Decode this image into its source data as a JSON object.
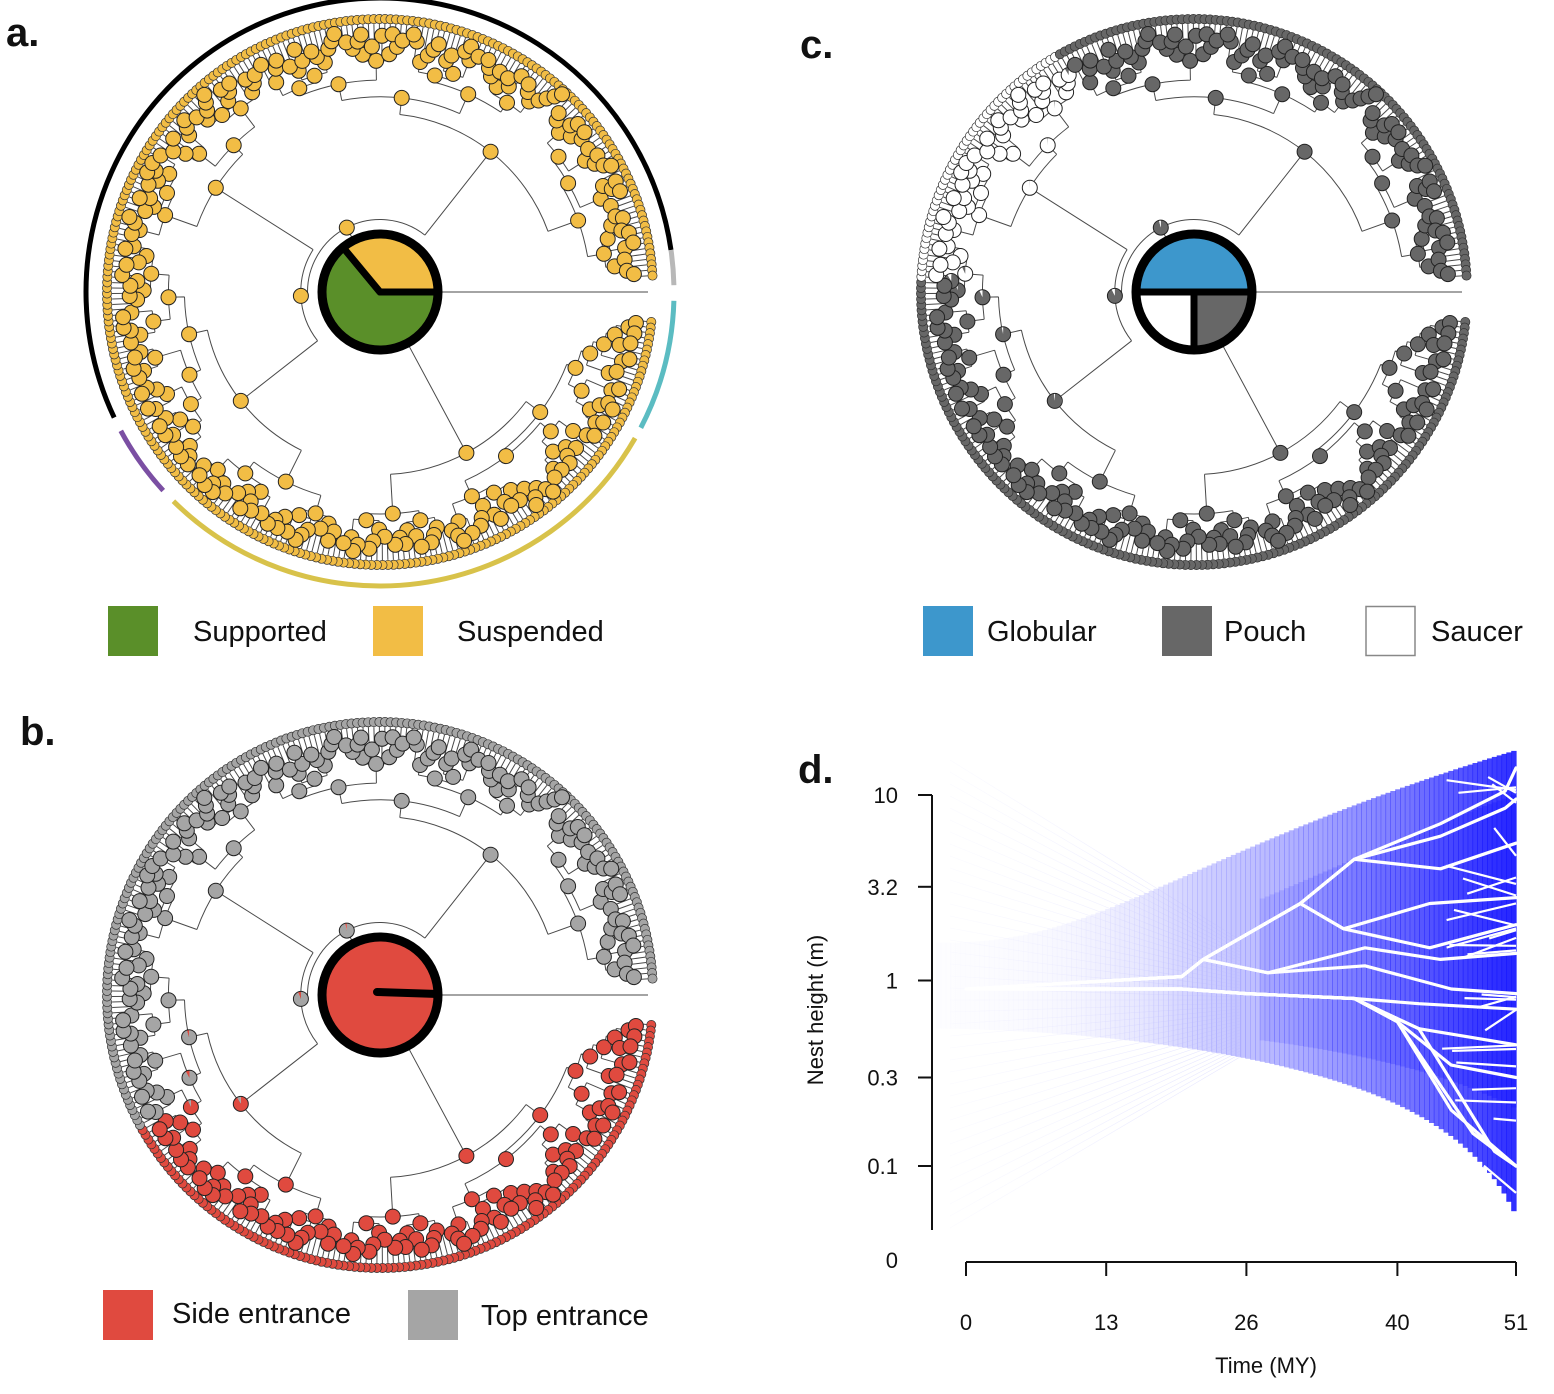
{
  "panels": {
    "a": {
      "label": "a."
    },
    "b": {
      "label": "b."
    },
    "c": {
      "label": "c."
    },
    "d": {
      "label": "d."
    }
  },
  "colors": {
    "supported": "#5a8f29",
    "suspended": "#f2bd45",
    "side_entrance": "#e04a3f",
    "top_entrance": "#a5a5a5",
    "globular": "#3d97cc",
    "pouch": "#676767",
    "saucer": "#ffffff",
    "density": "#1414ff",
    "lineage": "#ffffff",
    "arc_black": "#000000",
    "arc_gray": "#b8b8b8",
    "arc_teal": "#5bbcc2",
    "arc_gold": "#d8c24a",
    "arc_purple": "#7b4fa3"
  },
  "legends": {
    "a": [
      {
        "label": "Supported",
        "color": "#5a8f29"
      },
      {
        "label": "Suspended",
        "color": "#f2bd45"
      }
    ],
    "b": [
      {
        "label": "Side entrance",
        "color": "#e04a3f"
      },
      {
        "label": "Top entrance",
        "color": "#a5a5a5"
      }
    ],
    "c": [
      {
        "label": "Globular",
        "color": "#3d97cc"
      },
      {
        "label": "Pouch",
        "color": "#676767"
      },
      {
        "label": "Saucer",
        "color": "#ffffff"
      }
    ]
  },
  "chart_data": [
    {
      "panel": "a",
      "type": "pie",
      "description_of_marks": "circular phylogeny with ancestral-state pies; root pie shown",
      "root_state": [
        {
          "name": "Supported",
          "value": 0.64
        },
        {
          "name": "Suspended",
          "value": 0.36
        }
      ],
      "legend": [
        "Supported",
        "Suspended"
      ]
    },
    {
      "panel": "b",
      "type": "pie",
      "root_state": [
        {
          "name": "Side entrance",
          "value": 1.0
        },
        {
          "name": "Top entrance",
          "value": 0.0
        }
      ],
      "legend": [
        "Side entrance",
        "Top entrance"
      ]
    },
    {
      "panel": "c",
      "type": "pie",
      "root_state": [
        {
          "name": "Globular",
          "value": 0.5
        },
        {
          "name": "Pouch",
          "value": 0.25
        },
        {
          "name": "Saucer",
          "value": 0.25
        }
      ],
      "legend": [
        "Globular",
        "Pouch",
        "Saucer"
      ]
    },
    {
      "panel": "d",
      "type": "line",
      "xlabel": "Time (MY)",
      "ylabel": "Nest height (m)",
      "x_ticks": [
        "0",
        "13",
        "26",
        "40",
        "51"
      ],
      "x_tick_values": [
        0,
        13,
        26,
        40,
        51
      ],
      "y_ticks": [
        "0",
        "0.1",
        "0.3",
        "1",
        "3.2",
        "10"
      ],
      "xlim": [
        0,
        51
      ],
      "y_scale": "log",
      "grid": false,
      "lineages": [
        {
          "x": [
            0,
            20,
            22,
            31,
            36,
            44,
            50,
            51
          ],
          "y": [
            0.9,
            1.05,
            1.3,
            2.6,
            4.5,
            7.0,
            10.5,
            14
          ]
        },
        {
          "x": [
            0,
            20,
            22,
            31,
            36,
            44,
            50,
            51
          ],
          "y": [
            0.9,
            1.05,
            1.3,
            2.6,
            4.5,
            6.0,
            8.5,
            9.5
          ]
        },
        {
          "x": [
            0,
            20,
            22,
            31,
            36,
            44,
            51
          ],
          "y": [
            0.9,
            1.05,
            1.3,
            2.6,
            4.5,
            4.0,
            5.5
          ]
        },
        {
          "x": [
            0,
            20,
            22,
            31,
            35,
            43,
            51
          ],
          "y": [
            0.9,
            1.05,
            1.3,
            2.6,
            1.9,
            2.6,
            2.8
          ]
        },
        {
          "x": [
            0,
            20,
            22,
            31,
            35,
            43,
            51
          ],
          "y": [
            0.9,
            1.05,
            1.3,
            2.6,
            1.9,
            1.5,
            2.0
          ]
        },
        {
          "x": [
            0,
            20,
            22,
            28,
            37,
            44,
            51
          ],
          "y": [
            0.9,
            1.05,
            1.3,
            1.1,
            1.5,
            1.3,
            1.4
          ]
        },
        {
          "x": [
            0,
            20,
            22,
            28,
            37,
            45,
            51
          ],
          "y": [
            0.9,
            1.05,
            1.3,
            1.1,
            1.2,
            0.9,
            0.85
          ]
        },
        {
          "x": [
            0,
            20,
            26,
            36,
            42,
            51
          ],
          "y": [
            0.9,
            0.9,
            0.85,
            0.8,
            0.75,
            0.7
          ]
        },
        {
          "x": [
            0,
            20,
            26,
            36,
            42,
            51
          ],
          "y": [
            0.9,
            0.9,
            0.85,
            0.8,
            0.55,
            0.45
          ]
        },
        {
          "x": [
            0,
            20,
            26,
            36,
            40,
            45,
            51
          ],
          "y": [
            0.9,
            0.9,
            0.85,
            0.8,
            0.6,
            0.35,
            0.3
          ]
        },
        {
          "x": [
            0,
            20,
            26,
            36,
            40,
            45,
            51
          ],
          "y": [
            0.9,
            0.9,
            0.85,
            0.8,
            0.6,
            0.2,
            0.1
          ]
        },
        {
          "x": [
            0,
            20,
            26,
            36,
            40,
            47,
            51
          ],
          "y": [
            0.9,
            0.9,
            0.85,
            0.8,
            0.6,
            0.15,
            0.1
          ]
        },
        {
          "x": [
            0,
            20,
            26,
            36,
            42,
            49,
            51
          ],
          "y": [
            0.9,
            0.9,
            0.85,
            0.8,
            0.55,
            0.12,
            0.1
          ]
        }
      ]
    }
  ]
}
